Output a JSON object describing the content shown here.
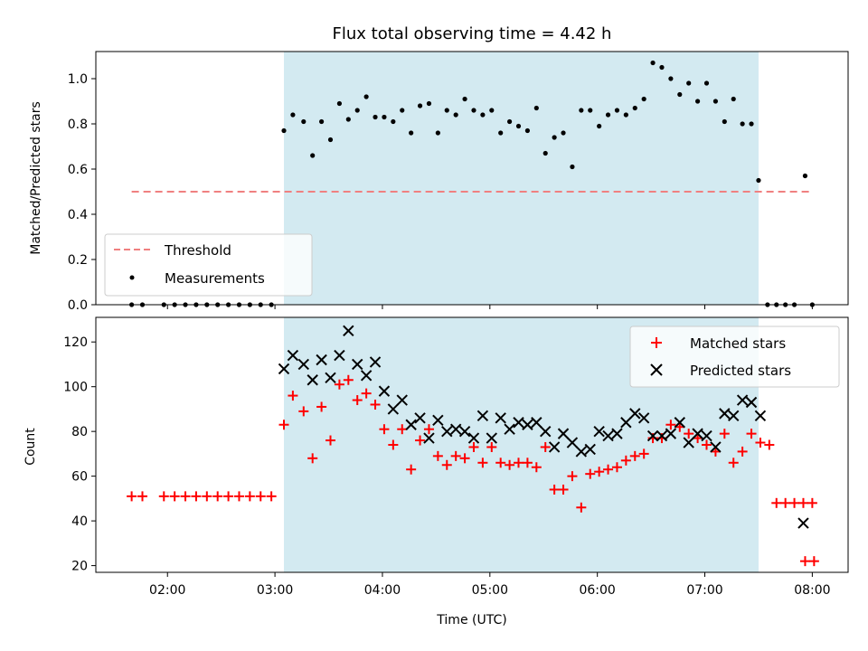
{
  "chart_data": [
    {
      "type": "scatter",
      "title": "Flux total observing time = 4.42 h",
      "xlabel": "",
      "ylabel": "Matched/Predicted stars",
      "ylim": [
        0,
        1.12
      ],
      "yticks": [
        "0.0",
        "0.2",
        "0.4",
        "0.6",
        "0.8",
        "1.0"
      ],
      "shaded_span": {
        "start": "03:05",
        "end": "07:30",
        "color": "#d3eaf1"
      },
      "threshold": {
        "name": "Threshold",
        "value": 0.5,
        "x_start": "01:40",
        "x_end": "08:00",
        "color": "#f08080"
      },
      "legend": {
        "position": "lower-left",
        "entries": [
          "Threshold",
          "Measurements"
        ]
      },
      "series": [
        {
          "name": "Measurements",
          "color": "#000000",
          "marker": "dot",
          "points": [
            [
              "01:40",
              0.0
            ],
            [
              "01:46",
              0.0
            ],
            [
              "01:58",
              0.0
            ],
            [
              "02:04",
              0.0
            ],
            [
              "02:10",
              0.0
            ],
            [
              "02:16",
              0.0
            ],
            [
              "02:22",
              0.0
            ],
            [
              "02:28",
              0.0
            ],
            [
              "02:34",
              0.0
            ],
            [
              "02:40",
              0.0
            ],
            [
              "02:46",
              0.0
            ],
            [
              "02:52",
              0.0
            ],
            [
              "02:58",
              0.0
            ],
            [
              "03:05",
              0.77
            ],
            [
              "03:10",
              0.84
            ],
            [
              "03:16",
              0.81
            ],
            [
              "03:21",
              0.66
            ],
            [
              "03:26",
              0.81
            ],
            [
              "03:31",
              0.73
            ],
            [
              "03:36",
              0.89
            ],
            [
              "03:41",
              0.82
            ],
            [
              "03:46",
              0.86
            ],
            [
              "03:51",
              0.92
            ],
            [
              "03:56",
              0.83
            ],
            [
              "04:01",
              0.83
            ],
            [
              "04:06",
              0.81
            ],
            [
              "04:11",
              0.86
            ],
            [
              "04:16",
              0.76
            ],
            [
              "04:21",
              0.88
            ],
            [
              "04:26",
              0.89
            ],
            [
              "04:31",
              0.76
            ],
            [
              "04:36",
              0.86
            ],
            [
              "04:41",
              0.84
            ],
            [
              "04:46",
              0.91
            ],
            [
              "04:51",
              0.86
            ],
            [
              "04:56",
              0.84
            ],
            [
              "05:01",
              0.86
            ],
            [
              "05:06",
              0.76
            ],
            [
              "05:11",
              0.81
            ],
            [
              "05:16",
              0.79
            ],
            [
              "05:21",
              0.77
            ],
            [
              "05:26",
              0.87
            ],
            [
              "05:31",
              0.67
            ],
            [
              "05:36",
              0.74
            ],
            [
              "05:41",
              0.76
            ],
            [
              "05:46",
              0.61
            ],
            [
              "05:51",
              0.86
            ],
            [
              "05:56",
              0.86
            ],
            [
              "06:01",
              0.79
            ],
            [
              "06:06",
              0.84
            ],
            [
              "06:11",
              0.86
            ],
            [
              "06:16",
              0.84
            ],
            [
              "06:21",
              0.87
            ],
            [
              "06:26",
              0.91
            ],
            [
              "06:31",
              1.07
            ],
            [
              "06:36",
              1.05
            ],
            [
              "06:41",
              1.0
            ],
            [
              "06:46",
              0.93
            ],
            [
              "06:51",
              0.98
            ],
            [
              "06:56",
              0.9
            ],
            [
              "07:01",
              0.98
            ],
            [
              "07:06",
              0.9
            ],
            [
              "07:11",
              0.81
            ],
            [
              "07:16",
              0.91
            ],
            [
              "07:21",
              0.8
            ],
            [
              "07:26",
              0.8
            ],
            [
              "07:30",
              0.55
            ],
            [
              "07:35",
              0.0
            ],
            [
              "07:40",
              0.0
            ],
            [
              "07:45",
              0.0
            ],
            [
              "07:50",
              0.0
            ],
            [
              "07:56",
              0.57
            ],
            [
              "08:00",
              0.0
            ]
          ]
        }
      ]
    },
    {
      "type": "scatter",
      "xlabel": "Time (UTC)",
      "ylabel": "Count",
      "ylim": [
        17,
        131
      ],
      "yticks": [
        "20",
        "40",
        "60",
        "80",
        "100",
        "120"
      ],
      "xlim": [
        "01:20",
        "08:20"
      ],
      "xticks": [
        "02:00",
        "03:00",
        "04:00",
        "05:00",
        "06:00",
        "07:00",
        "08:00"
      ],
      "shaded_span": {
        "start": "03:05",
        "end": "07:30",
        "color": "#d3eaf1"
      },
      "legend": {
        "position": "top-right",
        "entries": [
          "Matched stars",
          "Predicted stars"
        ]
      },
      "series": [
        {
          "name": "Matched stars",
          "color": "#ff0000",
          "marker": "plus",
          "points": [
            [
              "01:40",
              51
            ],
            [
              "01:46",
              51
            ],
            [
              "01:58",
              51
            ],
            [
              "02:04",
              51
            ],
            [
              "02:10",
              51
            ],
            [
              "02:16",
              51
            ],
            [
              "02:22",
              51
            ],
            [
              "02:28",
              51
            ],
            [
              "02:34",
              51
            ],
            [
              "02:40",
              51
            ],
            [
              "02:46",
              51
            ],
            [
              "02:52",
              51
            ],
            [
              "02:58",
              51
            ],
            [
              "03:05",
              83
            ],
            [
              "03:10",
              96
            ],
            [
              "03:16",
              89
            ],
            [
              "03:21",
              68
            ],
            [
              "03:26",
              91
            ],
            [
              "03:31",
              76
            ],
            [
              "03:36",
              101
            ],
            [
              "03:41",
              103
            ],
            [
              "03:46",
              94
            ],
            [
              "03:51",
              97
            ],
            [
              "03:56",
              92
            ],
            [
              "04:01",
              81
            ],
            [
              "04:06",
              74
            ],
            [
              "04:11",
              81
            ],
            [
              "04:16",
              63
            ],
            [
              "04:21",
              76
            ],
            [
              "04:26",
              81
            ],
            [
              "04:31",
              69
            ],
            [
              "04:36",
              65
            ],
            [
              "04:41",
              69
            ],
            [
              "04:46",
              68
            ],
            [
              "04:51",
              73
            ],
            [
              "04:56",
              66
            ],
            [
              "05:01",
              73
            ],
            [
              "05:06",
              66
            ],
            [
              "05:11",
              65
            ],
            [
              "05:16",
              66
            ],
            [
              "05:21",
              66
            ],
            [
              "05:26",
              64
            ],
            [
              "05:31",
              73
            ],
            [
              "05:36",
              54
            ],
            [
              "05:41",
              54
            ],
            [
              "05:46",
              60
            ],
            [
              "05:51",
              46
            ],
            [
              "05:56",
              61
            ],
            [
              "06:01",
              62
            ],
            [
              "06:06",
              63
            ],
            [
              "06:11",
              64
            ],
            [
              "06:16",
              67
            ],
            [
              "06:21",
              69
            ],
            [
              "06:26",
              70
            ],
            [
              "06:31",
              77
            ],
            [
              "06:36",
              77
            ],
            [
              "06:41",
              83
            ],
            [
              "06:46",
              82
            ],
            [
              "06:51",
              79
            ],
            [
              "06:56",
              77
            ],
            [
              "07:01",
              74
            ],
            [
              "07:06",
              71
            ],
            [
              "07:11",
              79
            ],
            [
              "07:16",
              66
            ],
            [
              "07:21",
              71
            ],
            [
              "07:26",
              79
            ],
            [
              "07:31",
              75
            ],
            [
              "07:36",
              74
            ],
            [
              "07:40",
              48
            ],
            [
              "07:45",
              48
            ],
            [
              "07:50",
              48
            ],
            [
              "07:55",
              48
            ],
            [
              "08:00",
              48
            ],
            [
              "07:56",
              22
            ],
            [
              "08:01",
              22
            ]
          ]
        },
        {
          "name": "Predicted stars",
          "color": "#000000",
          "marker": "x",
          "points": [
            [
              "03:05",
              108
            ],
            [
              "03:10",
              114
            ],
            [
              "03:16",
              110
            ],
            [
              "03:21",
              103
            ],
            [
              "03:26",
              112
            ],
            [
              "03:31",
              104
            ],
            [
              "03:36",
              114
            ],
            [
              "03:41",
              125
            ],
            [
              "03:46",
              110
            ],
            [
              "03:51",
              105
            ],
            [
              "03:56",
              111
            ],
            [
              "04:01",
              98
            ],
            [
              "04:06",
              90
            ],
            [
              "04:11",
              94
            ],
            [
              "04:16",
              83
            ],
            [
              "04:21",
              86
            ],
            [
              "04:26",
              77
            ],
            [
              "04:31",
              85
            ],
            [
              "04:36",
              80
            ],
            [
              "04:41",
              81
            ],
            [
              "04:46",
              80
            ],
            [
              "04:51",
              77
            ],
            [
              "04:56",
              87
            ],
            [
              "05:01",
              77
            ],
            [
              "05:06",
              86
            ],
            [
              "05:11",
              81
            ],
            [
              "05:16",
              84
            ],
            [
              "05:21",
              83
            ],
            [
              "05:26",
              84
            ],
            [
              "05:31",
              80
            ],
            [
              "05:36",
              73
            ],
            [
              "05:41",
              79
            ],
            [
              "05:46",
              75
            ],
            [
              "05:51",
              71
            ],
            [
              "05:56",
              72
            ],
            [
              "06:01",
              80
            ],
            [
              "06:06",
              78
            ],
            [
              "06:11",
              79
            ],
            [
              "06:16",
              84
            ],
            [
              "06:21",
              88
            ],
            [
              "06:26",
              86
            ],
            [
              "06:31",
              78
            ],
            [
              "06:36",
              78
            ],
            [
              "06:41",
              79
            ],
            [
              "06:46",
              84
            ],
            [
              "06:51",
              75
            ],
            [
              "06:56",
              79
            ],
            [
              "07:01",
              78
            ],
            [
              "07:06",
              73
            ],
            [
              "07:11",
              88
            ],
            [
              "07:16",
              87
            ],
            [
              "07:21",
              94
            ],
            [
              "07:26",
              93
            ],
            [
              "07:31",
              87
            ],
            [
              "07:55",
              39
            ]
          ]
        }
      ]
    }
  ]
}
